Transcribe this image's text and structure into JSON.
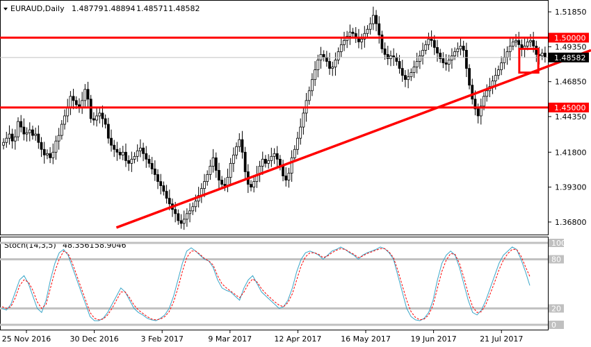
{
  "header": {
    "symbol_timeframe": "EURAUD,Daily",
    "open": "1.48779",
    "high": "1.48894",
    "low": "1.48571",
    "close": "1.48582"
  },
  "indicator": {
    "label": "Stoch(14,3,5)",
    "main": "48.3561",
    "signal": "58.9046"
  },
  "colors": {
    "bull": "#000000",
    "bear": "#000000",
    "level_line": "#ff0000",
    "trendline": "#ff0000",
    "price_marker_bg": "#ffffff",
    "level_marker_bg": "#ff0000",
    "stoch_main": "#3aa6c8",
    "stoch_signal": "#ff0000",
    "stoch_levels": "#c0c0c0"
  },
  "chart_data": [
    {
      "type": "candlestick",
      "title": "EURAUD,Daily",
      "x_tick_labels": [
        "25 Nov 2016",
        "30 Dec 2016",
        "3 Feb 2017",
        "9 Mar 2017",
        "12 Apr 2017",
        "16 May 2017",
        "19 Jun 2017",
        "21 Jul 2017"
      ],
      "y_tick_labels": [
        "1.51850",
        "1.49350",
        "1.46850",
        "1.44350",
        "1.41800",
        "1.39300",
        "1.36800"
      ],
      "ylim": [
        1.36,
        1.524
      ],
      "current_price": "1.48582",
      "horizontal_levels": [
        {
          "label": "1.50000",
          "value": 1.5
        },
        {
          "label": "1.45000",
          "value": 1.45
        }
      ],
      "trendline": {
        "from": {
          "index": 0.21,
          "value": 1.364
        },
        "to": {
          "index": 1.0,
          "value": 1.491
        }
      },
      "highlight_box": {
        "index_from": 0.95,
        "index_to": 0.985,
        "value_low": 1.475,
        "value_high": 1.492
      },
      "close": [
        1.425,
        1.428,
        1.431,
        1.426,
        1.429,
        1.44,
        1.436,
        1.431,
        1.432,
        1.434,
        1.43,
        1.431,
        1.425,
        1.42,
        1.416,
        1.417,
        1.414,
        1.418,
        1.426,
        1.43,
        1.438,
        1.444,
        1.45,
        1.458,
        1.455,
        1.452,
        1.45,
        1.455,
        1.463,
        1.456,
        1.442,
        1.441,
        1.444,
        1.446,
        1.442,
        1.438,
        1.428,
        1.423,
        1.42,
        1.418,
        1.416,
        1.418,
        1.412,
        1.41,
        1.413,
        1.415,
        1.419,
        1.421,
        1.417,
        1.413,
        1.41,
        1.406,
        1.402,
        1.397,
        1.394,
        1.39,
        1.385,
        1.381,
        1.377,
        1.374,
        1.369,
        1.367,
        1.37,
        1.374,
        1.376,
        1.379,
        1.383,
        1.387,
        1.392,
        1.397,
        1.402,
        1.408,
        1.414,
        1.405,
        1.398,
        1.395,
        1.394,
        1.4,
        1.41,
        1.416,
        1.422,
        1.427,
        1.418,
        1.404,
        1.395,
        1.393,
        1.397,
        1.402,
        1.408,
        1.413,
        1.41,
        1.412,
        1.415,
        1.417,
        1.413,
        1.408,
        1.401,
        1.398,
        1.403,
        1.414,
        1.42,
        1.428,
        1.436,
        1.446,
        1.455,
        1.462,
        1.47,
        1.477,
        1.484,
        1.488,
        1.486,
        1.483,
        1.478,
        1.479,
        1.484,
        1.49,
        1.495,
        1.498,
        1.501,
        1.504,
        1.503,
        1.5,
        1.497,
        1.499,
        1.503,
        1.506,
        1.51,
        1.516,
        1.51,
        1.502,
        1.492,
        1.488,
        1.485,
        1.487,
        1.486,
        1.483,
        1.478,
        1.473,
        1.47,
        1.472,
        1.475,
        1.479,
        1.483,
        1.487,
        1.491,
        1.495,
        1.499,
        1.498,
        1.493,
        1.489,
        1.485,
        1.482,
        1.481,
        1.484,
        1.487,
        1.49,
        1.492,
        1.494,
        1.491,
        1.478,
        1.466,
        1.456,
        1.449,
        1.444,
        1.451,
        1.458,
        1.462,
        1.465,
        1.469,
        1.473,
        1.477,
        1.482,
        1.486,
        1.49,
        1.494,
        1.497,
        1.498,
        1.495,
        1.492,
        1.494,
        1.497,
        1.498,
        1.494,
        1.488,
        1.487,
        1.489,
        1.486
      ],
      "indicator": {
        "name": "Stoch(14,3,5)",
        "ylim": [
          0,
          100
        ],
        "levels": [
          100,
          80,
          20,
          0
        ],
        "level_labels": [
          "100",
          "80",
          "20",
          "0"
        ],
        "series": [
          {
            "name": "Main",
            "values": [
              20,
              18,
              25,
              40,
              55,
              60,
              50,
              35,
              20,
              15,
              30,
              55,
              75,
              88,
              92,
              85,
              70,
              55,
              40,
              25,
              10,
              5,
              5,
              8,
              15,
              25,
              35,
              45,
              40,
              30,
              20,
              15,
              12,
              8,
              6,
              5,
              8,
              12,
              20,
              35,
              55,
              75,
              90,
              94,
              90,
              85,
              80,
              78,
              70,
              55,
              45,
              42,
              40,
              35,
              30,
              45,
              55,
              60,
              50,
              40,
              35,
              30,
              25,
              20,
              22,
              30,
              45,
              65,
              80,
              88,
              90,
              88,
              85,
              80,
              85,
              90,
              92,
              95,
              92,
              88,
              85,
              80,
              85,
              88,
              90,
              92,
              95,
              93,
              88,
              80,
              60,
              40,
              20,
              10,
              6,
              5,
              8,
              15,
              30,
              55,
              75,
              85,
              90,
              85,
              70,
              50,
              30,
              15,
              12,
              18,
              30,
              45,
              60,
              75,
              85,
              90,
              95,
              92,
              80,
              65,
              48
            ]
          },
          {
            "name": "Signal",
            "values": [
              22,
              20,
              22,
              33,
              48,
              55,
              52,
              42,
              28,
              20,
              25,
              45,
              65,
              80,
              90,
              87,
              75,
              60,
              45,
              30,
              15,
              8,
              6,
              7,
              12,
              20,
              30,
              40,
              40,
              33,
              24,
              18,
              14,
              10,
              7,
              6,
              7,
              10,
              16,
              28,
              45,
              65,
              82,
              90,
              90,
              86,
              81,
              78,
              73,
              60,
              50,
              45,
              41,
              37,
              33,
              40,
              50,
              56,
              52,
              44,
              38,
              33,
              28,
              24,
              22,
              27,
              38,
              55,
              72,
              83,
              88,
              88,
              86,
              82,
              84,
              88,
              91,
              93,
              92,
              89,
              86,
              82,
              84,
              87,
              89,
              91,
              93,
              93,
              89,
              82,
              66,
              48,
              30,
              16,
              9,
              6,
              7,
              12,
              24,
              45,
              65,
              79,
              87,
              86,
              75,
              58,
              38,
              22,
              15,
              16,
              25,
              38,
              52,
              67,
              79,
              87,
              92,
              92,
              84,
              71,
              59
            ]
          }
        ]
      }
    }
  ]
}
